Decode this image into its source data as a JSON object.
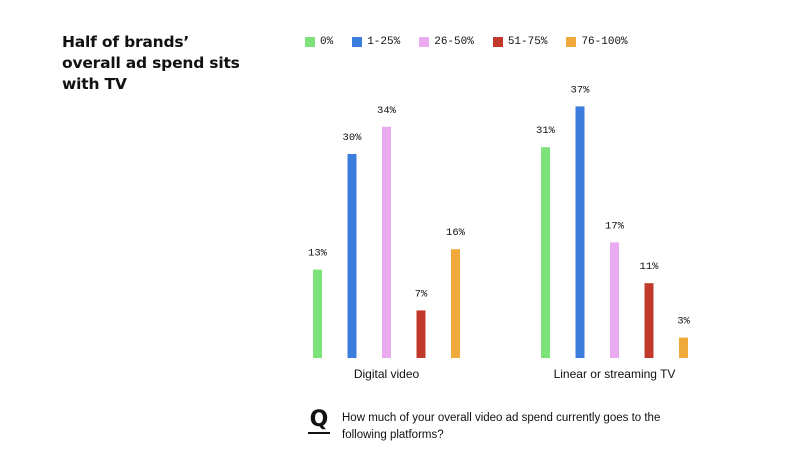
{
  "title": "Half of brands’ overall ad spend sits with TV",
  "question": "How much of your overall video ad spend currently goes to the following platforms?",
  "chart_data": {
    "type": "bar",
    "categories": [
      "Digital video",
      "Linear or streaming TV"
    ],
    "series": [
      {
        "name": "0%",
        "color": "#7ee27a",
        "values": [
          13,
          31
        ]
      },
      {
        "name": "1-25%",
        "color": "#3b7ddd",
        "values": [
          30,
          37
        ]
      },
      {
        "name": "26-50%",
        "color": "#e9aaf0",
        "values": [
          34,
          17
        ]
      },
      {
        "name": "51-75%",
        "color": "#c0392b",
        "values": [
          7,
          11
        ]
      },
      {
        "name": "76-100%",
        "color": "#f0aa3c",
        "values": [
          16,
          3
        ]
      }
    ],
    "value_suffix": "%",
    "ylim": [
      0,
      40
    ],
    "legend": "top",
    "grid": false
  }
}
